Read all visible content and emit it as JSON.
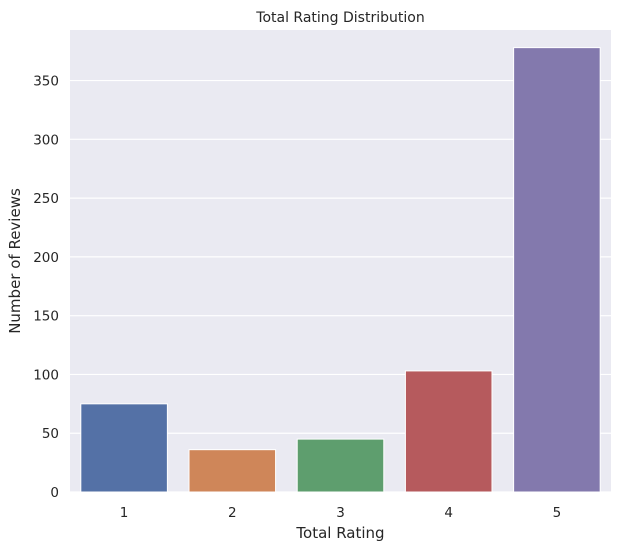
{
  "chart_data": {
    "type": "bar",
    "title": "Total Rating Distribution",
    "xlabel": "Total Rating",
    "ylabel": "Number of Reviews",
    "categories": [
      "1",
      "2",
      "3",
      "4",
      "5"
    ],
    "values": [
      75,
      36,
      45,
      103,
      378
    ],
    "colors": [
      "#5471a6",
      "#cf8659",
      "#5e9e6e",
      "#b65a5d",
      "#8379ad"
    ],
    "ylim": [
      0,
      393
    ],
    "yticks": [
      0,
      50,
      100,
      150,
      200,
      250,
      300,
      350
    ],
    "grid": true,
    "background": "#eaeaf2"
  }
}
